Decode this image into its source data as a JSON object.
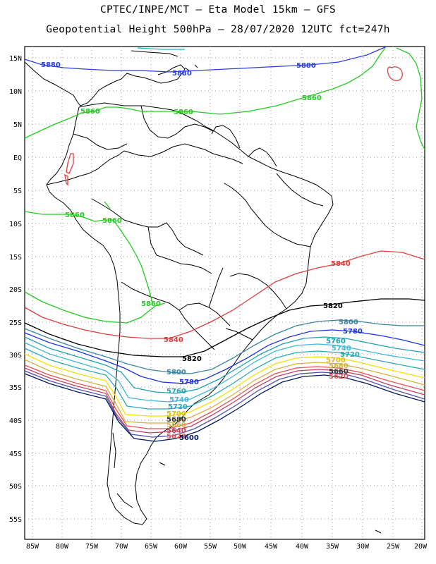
{
  "header": {
    "line1": "CPTEC/INPE/MCT –  Eta Model 15km – GFS",
    "line2": "Geopotential Height 500hPa – 28/07/2020 12UTC fct=247h"
  },
  "axes": {
    "lat_labels": [
      "15N",
      "10N",
      "5N",
      "EQ",
      "5S",
      "10S",
      "15S",
      "20S",
      "25S",
      "30S",
      "35S",
      "40S",
      "45S",
      "50S",
      "55S"
    ],
    "lon_labels": [
      "85W",
      "80W",
      "75W",
      "70W",
      "65W",
      "60W",
      "55W",
      "50W",
      "45W",
      "40W",
      "35W",
      "30W",
      "25W",
      "20W"
    ]
  },
  "colors": {
    "c5880": "#2b3fe0",
    "c5860": "#22cc22",
    "c5840": "#e03c3c",
    "c5820": "#000000",
    "c5800": "#3a86a0",
    "c5780": "#1e34e0",
    "c5760": "#1fa0b0",
    "c5740": "#3fb8d8",
    "c5720": "#2aa8b8",
    "c5700": "#f5e000",
    "c5680": "#d6b040",
    "c5660": "#e85050",
    "c5640": "#c04060",
    "c5620": "#5050b0",
    "c5600": "#001a60"
  },
  "contours": {
    "c5880": [
      "5880",
      "5880",
      "5880"
    ],
    "c5860": [
      "5860",
      "5860",
      "5860",
      "5860",
      "5860",
      "5860"
    ],
    "c5840": [
      "5840",
      "5840"
    ],
    "c5820": [
      "5820",
      "5820"
    ],
    "c5800": [
      "5800",
      "5800"
    ],
    "c5780": [
      "5780",
      "5780"
    ],
    "c5760": [
      "5760",
      "5760"
    ],
    "c5740": [
      "5740",
      "5740"
    ],
    "c5720": [
      "5720",
      "5720"
    ],
    "c5700": [
      "5700",
      "5700"
    ],
    "c5680": [
      "5680",
      "5680"
    ],
    "c5660": [
      "5660",
      "5660"
    ],
    "c5640": [
      "5640"
    ],
    "c5620": [
      "5620",
      "5620"
    ],
    "c5600": [
      "5600"
    ]
  }
}
